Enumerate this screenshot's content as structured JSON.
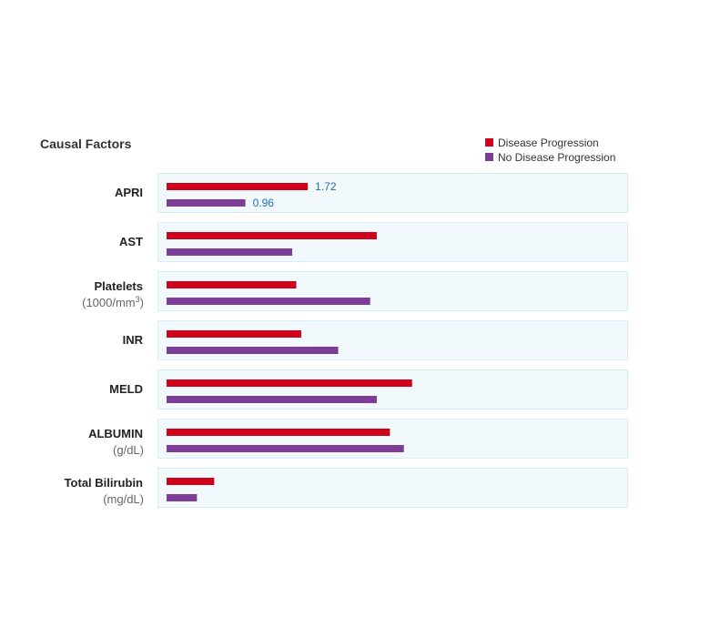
{
  "chart_data": {
    "type": "bar",
    "orientation": "horizontal",
    "title": "Causal Factors",
    "legend_position": "top-right",
    "grid": false,
    "categories": [
      {
        "label": "APRI",
        "sub": "",
        "sup": ""
      },
      {
        "label": "AST",
        "sub": "",
        "sup": ""
      },
      {
        "label": "Platelets",
        "sub": "(1000/mm",
        "sup": "3",
        "sub_tail": ")"
      },
      {
        "label": "INR",
        "sub": "",
        "sup": ""
      },
      {
        "label": "MELD",
        "sub": "",
        "sup": ""
      },
      {
        "label": "ALBUMIN",
        "sub": "(g/dL)",
        "sup": ""
      },
      {
        "label": "Total Bilirubin",
        "sub": "(mg/dL)",
        "sup": ""
      }
    ],
    "series": [
      {
        "name": "Disease Progression",
        "color": "#d0021b",
        "values": [
          1.72,
          2.56,
          1.58,
          1.64,
          2.99,
          2.72,
          0.58
        ],
        "data_labels": [
          "1.72",
          null,
          null,
          null,
          null,
          null,
          null
        ]
      },
      {
        "name": "No Disease Progression",
        "color": "#7d3c98",
        "values": [
          0.96,
          1.53,
          2.48,
          2.09,
          2.56,
          2.89,
          0.37
        ],
        "data_labels": [
          "0.96",
          null,
          null,
          null,
          null,
          null,
          null
        ]
      }
    ]
  }
}
